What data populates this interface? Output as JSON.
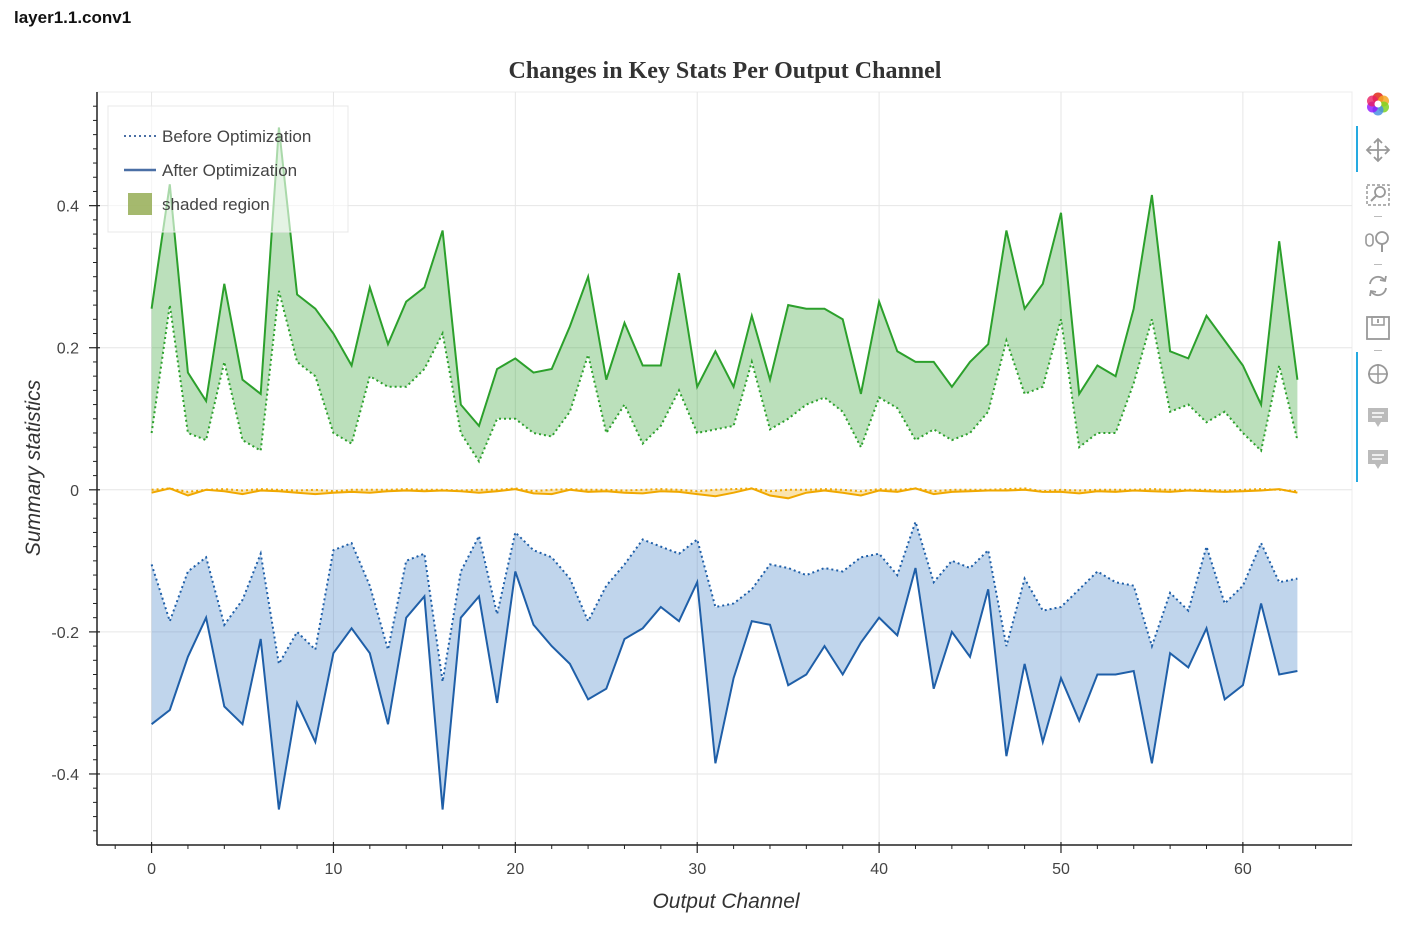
{
  "page": {
    "heading": "layer1.1.conv1"
  },
  "chart_data": {
    "type": "line",
    "title": "Changes in Key Stats Per Output Channel",
    "xlabel": "Output Channel",
    "ylabel": "Summary statistics",
    "xlim": [
      -3,
      66
    ],
    "ylim": [
      -0.5,
      0.56
    ],
    "x_ticks": [
      0,
      10,
      20,
      30,
      40,
      50,
      60
    ],
    "y_ticks": [
      -0.4,
      -0.2,
      0,
      0.2,
      0.4
    ],
    "y_tick_labels": [
      "-0.4",
      "-0.2",
      "0",
      "0.2",
      "0.4"
    ],
    "grid": true,
    "legend_placement": "top-left",
    "legend": [
      {
        "label": "Before Optimization",
        "style": "dotted"
      },
      {
        "label": "After Optimization",
        "style": "solid"
      },
      {
        "label": "shaded region",
        "style": "patch"
      }
    ],
    "x": [
      0,
      1,
      2,
      3,
      4,
      5,
      6,
      7,
      8,
      9,
      10,
      11,
      12,
      13,
      14,
      15,
      16,
      17,
      18,
      19,
      20,
      21,
      22,
      23,
      24,
      25,
      26,
      27,
      28,
      29,
      30,
      31,
      32,
      33,
      34,
      35,
      36,
      37,
      38,
      39,
      40,
      41,
      42,
      43,
      44,
      45,
      46,
      47,
      48,
      49,
      50,
      51,
      52,
      53,
      54,
      55,
      56,
      57,
      58,
      59,
      60,
      61,
      62,
      63
    ],
    "series": [
      {
        "group": "max",
        "color": "#2ca02c",
        "fill": "#2ca02c",
        "before": [
          0.08,
          0.26,
          0.08,
          0.07,
          0.18,
          0.07,
          0.055,
          0.28,
          0.18,
          0.16,
          0.08,
          0.065,
          0.16,
          0.145,
          0.145,
          0.17,
          0.22,
          0.08,
          0.04,
          0.1,
          0.1,
          0.08,
          0.075,
          0.11,
          0.19,
          0.08,
          0.12,
          0.065,
          0.09,
          0.14,
          0.08,
          0.085,
          0.09,
          0.18,
          0.085,
          0.1,
          0.12,
          0.13,
          0.11,
          0.06,
          0.13,
          0.115,
          0.07,
          0.085,
          0.07,
          0.08,
          0.11,
          0.21,
          0.135,
          0.145,
          0.24,
          0.06,
          0.08,
          0.08,
          0.15,
          0.24,
          0.11,
          0.12,
          0.095,
          0.11,
          0.08,
          0.055,
          0.175,
          0.07
        ],
        "after": [
          0.255,
          0.43,
          0.165,
          0.125,
          0.29,
          0.155,
          0.135,
          0.51,
          0.275,
          0.255,
          0.22,
          0.175,
          0.285,
          0.205,
          0.265,
          0.285,
          0.365,
          0.12,
          0.09,
          0.17,
          0.185,
          0.165,
          0.17,
          0.23,
          0.3,
          0.155,
          0.235,
          0.175,
          0.175,
          0.305,
          0.145,
          0.195,
          0.145,
          0.245,
          0.155,
          0.26,
          0.255,
          0.255,
          0.24,
          0.135,
          0.265,
          0.195,
          0.18,
          0.18,
          0.145,
          0.18,
          0.205,
          0.365,
          0.255,
          0.29,
          0.39,
          0.135,
          0.175,
          0.16,
          0.255,
          0.415,
          0.195,
          0.185,
          0.245,
          0.21,
          0.175,
          0.12,
          0.35,
          0.155
        ]
      },
      {
        "group": "mean",
        "color": "#f0a800",
        "fill": "#f0a800",
        "before": [
          0.0,
          0.002,
          -0.003,
          0.0,
          0.001,
          -0.001,
          0.001,
          0.0,
          -0.001,
          0.0,
          -0.002,
          0.0,
          0.0,
          0.0,
          0.001,
          0.0,
          0.0,
          -0.001,
          0.0,
          0.0,
          0.002,
          -0.002,
          0.0,
          0.001,
          0.0,
          0.0,
          -0.001,
          0.0,
          0.001,
          0.0,
          -0.002,
          0.0,
          0.001,
          0.002,
          -0.002,
          0.0,
          0.0,
          0.001,
          0.0,
          -0.002,
          0.001,
          0.0,
          0.002,
          -0.002,
          0.0,
          0.0,
          0.0,
          0.001,
          0.002,
          -0.002,
          0.0,
          -0.001,
          0.0,
          0.0,
          0.0,
          0.001,
          0.0,
          0.0,
          0.0,
          -0.001,
          0.0,
          0.001,
          0.0,
          -0.002
        ],
        "after": [
          -0.004,
          0.002,
          -0.008,
          0.0,
          -0.002,
          -0.006,
          -0.001,
          -0.002,
          -0.004,
          -0.006,
          -0.004,
          -0.003,
          -0.004,
          -0.002,
          -0.001,
          -0.002,
          -0.001,
          -0.002,
          -0.004,
          -0.002,
          0.001,
          -0.005,
          -0.006,
          0.0,
          -0.003,
          -0.002,
          -0.004,
          -0.005,
          -0.002,
          -0.003,
          -0.006,
          -0.009,
          -0.004,
          0.002,
          -0.008,
          -0.012,
          -0.004,
          -0.001,
          -0.004,
          -0.008,
          -0.001,
          -0.003,
          0.002,
          -0.006,
          -0.003,
          -0.002,
          -0.001,
          -0.001,
          0.0,
          -0.003,
          -0.003,
          -0.005,
          -0.002,
          -0.003,
          -0.001,
          -0.002,
          -0.003,
          -0.001,
          -0.002,
          -0.003,
          -0.002,
          -0.001,
          0.001,
          -0.004
        ]
      },
      {
        "group": "min",
        "color": "#1f5fa8",
        "fill": "#3c7cc4",
        "before": [
          -0.105,
          -0.185,
          -0.115,
          -0.095,
          -0.19,
          -0.155,
          -0.09,
          -0.245,
          -0.2,
          -0.225,
          -0.085,
          -0.075,
          -0.135,
          -0.225,
          -0.1,
          -0.09,
          -0.27,
          -0.115,
          -0.065,
          -0.175,
          -0.06,
          -0.085,
          -0.095,
          -0.125,
          -0.185,
          -0.135,
          -0.105,
          -0.07,
          -0.08,
          -0.09,
          -0.07,
          -0.165,
          -0.16,
          -0.14,
          -0.105,
          -0.11,
          -0.12,
          -0.11,
          -0.115,
          -0.095,
          -0.09,
          -0.12,
          -0.045,
          -0.13,
          -0.1,
          -0.11,
          -0.085,
          -0.22,
          -0.125,
          -0.17,
          -0.165,
          -0.14,
          -0.115,
          -0.13,
          -0.135,
          -0.22,
          -0.145,
          -0.17,
          -0.08,
          -0.16,
          -0.135,
          -0.075,
          -0.13,
          -0.125
        ],
        "after": [
          -0.33,
          -0.31,
          -0.235,
          -0.18,
          -0.305,
          -0.33,
          -0.21,
          -0.45,
          -0.3,
          -0.355,
          -0.23,
          -0.195,
          -0.23,
          -0.33,
          -0.18,
          -0.15,
          -0.45,
          -0.18,
          -0.15,
          -0.3,
          -0.115,
          -0.19,
          -0.22,
          -0.245,
          -0.295,
          -0.28,
          -0.21,
          -0.195,
          -0.165,
          -0.185,
          -0.13,
          -0.385,
          -0.265,
          -0.185,
          -0.19,
          -0.275,
          -0.26,
          -0.22,
          -0.26,
          -0.215,
          -0.18,
          -0.205,
          -0.11,
          -0.28,
          -0.2,
          -0.235,
          -0.14,
          -0.375,
          -0.245,
          -0.355,
          -0.265,
          -0.325,
          -0.26,
          -0.26,
          -0.255,
          -0.385,
          -0.23,
          -0.25,
          -0.195,
          -0.295,
          -0.275,
          -0.16,
          -0.26,
          -0.255
        ]
      }
    ]
  },
  "toolbar": {
    "items": [
      {
        "icon": "bokeh-logo-icon"
      },
      {
        "icon": "pan-icon"
      },
      {
        "icon": "box-zoom-icon"
      },
      {
        "icon": "wheel-zoom-icon"
      },
      {
        "icon": "reset-icon"
      },
      {
        "icon": "save-icon"
      },
      {
        "icon": "crosshair-icon"
      },
      {
        "icon": "hover-icon"
      },
      {
        "icon": "hover-icon-2"
      }
    ]
  }
}
